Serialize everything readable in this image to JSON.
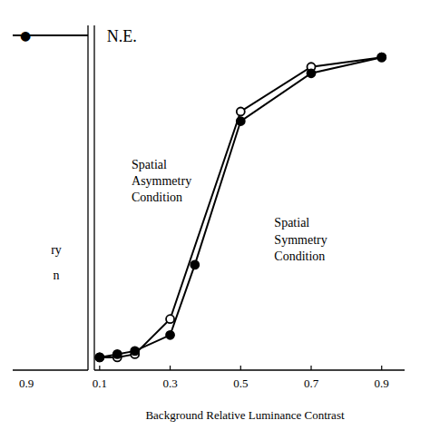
{
  "chart_data": {
    "type": "line",
    "x_label": "Background Relative Luminance Contrast",
    "series": [
      {
        "name": "Spatial\nAsymmetry\nCondition",
        "color": "#000000",
        "marker": "open-circle",
        "x": [
          0.1,
          0.15,
          0.2,
          0.3,
          0.5,
          0.7,
          0.9
        ],
        "values": [
          0.01,
          0.01,
          0.02,
          0.13,
          0.78,
          0.92,
          0.95
        ]
      },
      {
        "name": "Spatial\nSymmetry\nCondition",
        "color": "#000000",
        "marker": "circle",
        "x": [
          0.1,
          0.15,
          0.2,
          0.3,
          0.37,
          0.5,
          0.7,
          0.9
        ],
        "values": [
          0.01,
          0.02,
          0.03,
          0.08,
          0.3,
          0.75,
          0.9,
          0.95
        ]
      }
    ],
    "annotations": [
      "N.E.",
      "ry",
      "n",
      "0.9",
      "●"
    ],
    "xlim": [
      0.085,
      0.965
    ],
    "xticks": [
      0.1,
      0.3,
      0.5,
      0.7,
      0.9
    ],
    "ylim": [
      -0.03,
      1.05
    ],
    "tick_labels": "x",
    "grid": false
  }
}
